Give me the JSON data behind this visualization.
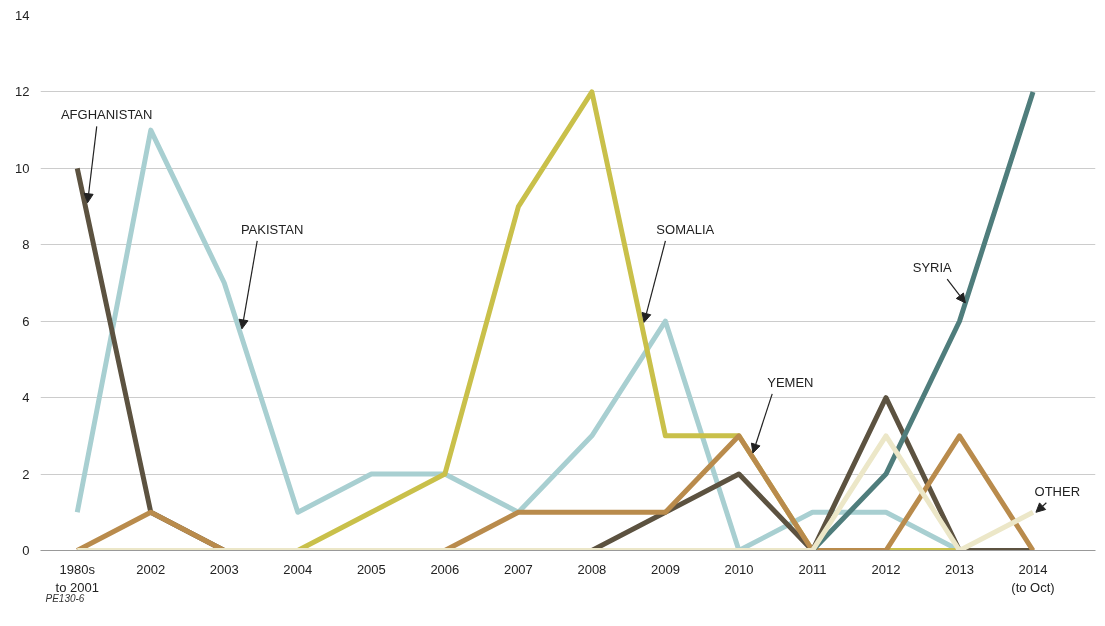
{
  "chart_data": {
    "type": "line",
    "categories": [
      "1980s\nto 2001",
      "2002",
      "2003",
      "2004",
      "2005",
      "2006",
      "2007",
      "2008",
      "2009",
      "2010",
      "2011",
      "2012",
      "2013",
      "2014\n(to Oct)"
    ],
    "series": [
      {
        "name": "PAKISTAN",
        "color": "#a8cfd1",
        "values": [
          1,
          11,
          7,
          1,
          2,
          2,
          1,
          3,
          6,
          0,
          1,
          1,
          0,
          0
        ]
      },
      {
        "name": "SOMALIA",
        "color": "#c9c04a",
        "values": [
          0,
          0,
          0,
          0,
          1,
          2,
          9,
          12,
          3,
          3,
          0,
          0,
          0,
          0
        ]
      },
      {
        "name": "AFGHANISTAN",
        "color": "#5c5240",
        "values": [
          10,
          1,
          0,
          0,
          0,
          0,
          0,
          0,
          1,
          2,
          0,
          4,
          0,
          0
        ]
      },
      {
        "name": "YEMEN",
        "color": "#b98b4c",
        "values": [
          0,
          1,
          0,
          0,
          0,
          0,
          1,
          1,
          1,
          3,
          0,
          0,
          3,
          0
        ]
      },
      {
        "name": "SYRIA",
        "color": "#4f7d7c",
        "values": [
          null,
          null,
          null,
          null,
          null,
          null,
          null,
          null,
          null,
          null,
          0,
          2,
          6,
          12
        ]
      },
      {
        "name": "OTHER",
        "color": "#ece7c8",
        "values": [
          0,
          0,
          0,
          0,
          0,
          0,
          0,
          0,
          0,
          0,
          0,
          3,
          0,
          1
        ]
      }
    ],
    "ylim": [
      0,
      14
    ],
    "yticks": [
      0,
      2,
      4,
      6,
      8,
      10,
      12,
      14
    ],
    "grid": "y",
    "line_style": "solid",
    "marker": "none",
    "annotations": [
      "PE130-6"
    ]
  }
}
